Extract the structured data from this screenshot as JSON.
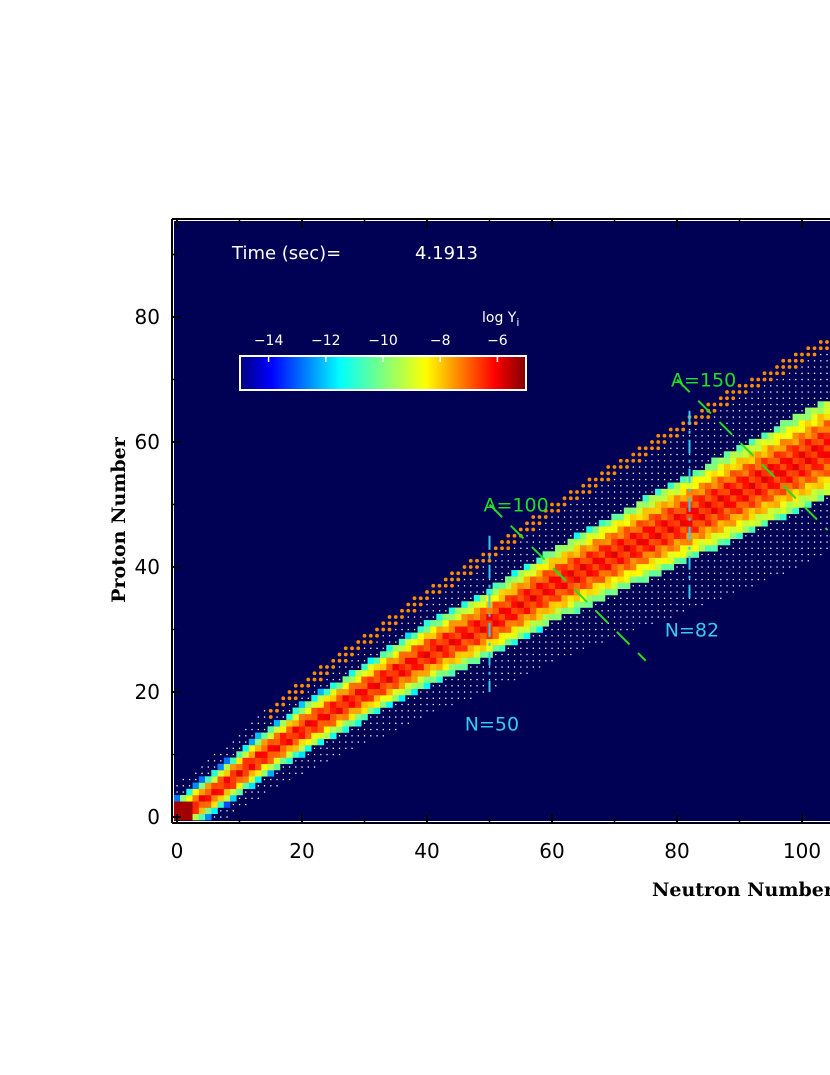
{
  "chart_data": {
    "type": "heatmap",
    "xlabel": "Neutron Number",
    "ylabel": "Proton Number",
    "xlim": [
      -1,
      104
    ],
    "ylim": [
      -0.5,
      96
    ],
    "x_ticks": [
      "0",
      "20",
      "40",
      "60",
      "80",
      "100"
    ],
    "y_ticks": [
      "0",
      "20",
      "40",
      "60",
      "80"
    ],
    "x_tick_values": [
      0,
      20,
      40,
      60,
      80,
      100
    ],
    "y_tick_values": [
      0,
      20,
      40,
      60,
      80
    ],
    "time_label": "Time (sec)=",
    "time_value": "4.1913",
    "colorbar": {
      "label": "log Y",
      "label_sub": "i",
      "ticks": [
        "−14",
        "−12",
        "−10",
        "−8",
        "−6"
      ],
      "tick_values": [
        -14,
        -12,
        -10,
        -8,
        -6
      ],
      "range": [
        -15,
        -5
      ]
    },
    "annotations": [
      {
        "text": "A=100",
        "color": "#22dd22",
        "x": 50,
        "y": 50,
        "line": [
          [
            50,
            50
          ],
          [
            75,
            25
          ]
        ]
      },
      {
        "text": "A=150",
        "color": "#22dd22",
        "x": 80,
        "y": 70,
        "line": [
          [
            80,
            70
          ],
          [
            104,
            46
          ]
        ]
      },
      {
        "text": "N=50",
        "color": "#33ccee",
        "x": 47,
        "y": 15,
        "line": [
          [
            50,
            45
          ],
          [
            50,
            20
          ]
        ]
      },
      {
        "text": "N=82",
        "color": "#33ccee",
        "x": 79,
        "y": 30,
        "line": [
          [
            82,
            65
          ],
          [
            82,
            35
          ]
        ]
      }
    ],
    "valley_path": [
      [
        0,
        0
      ],
      [
        6,
        4
      ],
      [
        14,
        10
      ],
      [
        20,
        14
      ],
      [
        30,
        20
      ],
      [
        40,
        26
      ],
      [
        50,
        31
      ],
      [
        60,
        37
      ],
      [
        70,
        42
      ],
      [
        82,
        48
      ],
      [
        90,
        52
      ],
      [
        104,
        59
      ]
    ],
    "colors": {
      "background": "#000055",
      "stable_markers": "#ff8c00",
      "grid_dots": "#ffffff",
      "peak": "#ff2200"
    }
  }
}
